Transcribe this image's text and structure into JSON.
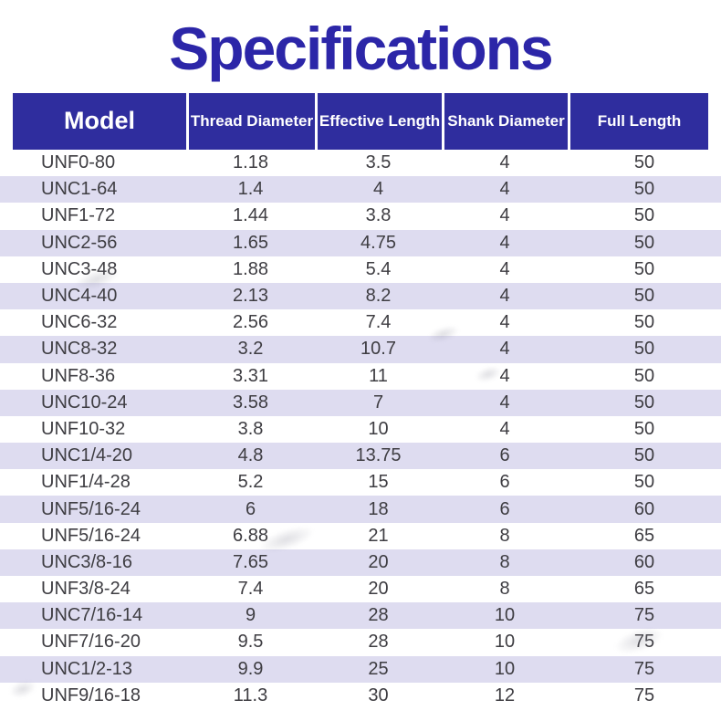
{
  "title": "Specifications",
  "colors": {
    "title_text": "#2c26a8",
    "header_bg": "#2f2d9e",
    "header_text": "#ffffff",
    "row_bg": "#ffffff",
    "row_alt_bg": "#dedcf0",
    "body_text": "#3e3d42"
  },
  "table": {
    "columns": [
      {
        "key": "model",
        "label": "Model"
      },
      {
        "key": "thread_diameter",
        "label": "Thread Diameter"
      },
      {
        "key": "effective_length",
        "label": "Effective Length"
      },
      {
        "key": "shank_diameter",
        "label": "Shank Diameter"
      },
      {
        "key": "full_length",
        "label": "Full Length"
      }
    ],
    "rows": [
      {
        "model": "UNF0-80",
        "thread_diameter": "1.18",
        "effective_length": "3.5",
        "shank_diameter": "4",
        "full_length": "50"
      },
      {
        "model": "UNC1-64",
        "thread_diameter": "1.4",
        "effective_length": "4",
        "shank_diameter": "4",
        "full_length": "50"
      },
      {
        "model": "UNF1-72",
        "thread_diameter": "1.44",
        "effective_length": "3.8",
        "shank_diameter": "4",
        "full_length": "50"
      },
      {
        "model": "UNC2-56",
        "thread_diameter": "1.65",
        "effective_length": "4.75",
        "shank_diameter": "4",
        "full_length": "50"
      },
      {
        "model": "UNC3-48",
        "thread_diameter": "1.88",
        "effective_length": "5.4",
        "shank_diameter": "4",
        "full_length": "50"
      },
      {
        "model": "UNC4-40",
        "thread_diameter": "2.13",
        "effective_length": "8.2",
        "shank_diameter": "4",
        "full_length": "50"
      },
      {
        "model": "UNC6-32",
        "thread_diameter": "2.56",
        "effective_length": "7.4",
        "shank_diameter": "4",
        "full_length": "50"
      },
      {
        "model": "UNC8-32",
        "thread_diameter": "3.2",
        "effective_length": "10.7",
        "shank_diameter": "4",
        "full_length": "50"
      },
      {
        "model": "UNF8-36",
        "thread_diameter": "3.31",
        "effective_length": "11",
        "shank_diameter": "4",
        "full_length": "50"
      },
      {
        "model": "UNC10-24",
        "thread_diameter": "3.58",
        "effective_length": "7",
        "shank_diameter": "4",
        "full_length": "50"
      },
      {
        "model": "UNF10-32",
        "thread_diameter": "3.8",
        "effective_length": "10",
        "shank_diameter": "4",
        "full_length": "50"
      },
      {
        "model": "UNC1/4-20",
        "thread_diameter": "4.8",
        "effective_length": "13.75",
        "shank_diameter": "6",
        "full_length": "50"
      },
      {
        "model": "UNF1/4-28",
        "thread_diameter": "5.2",
        "effective_length": "15",
        "shank_diameter": "6",
        "full_length": "50"
      },
      {
        "model": "UNF5/16-24",
        "thread_diameter": "6",
        "effective_length": "18",
        "shank_diameter": "6",
        "full_length": "60"
      },
      {
        "model": "UNF5/16-24",
        "thread_diameter": "6.88",
        "effective_length": "21",
        "shank_diameter": "8",
        "full_length": "65"
      },
      {
        "model": "UNC3/8-16",
        "thread_diameter": "7.65",
        "effective_length": "20",
        "shank_diameter": "8",
        "full_length": "60"
      },
      {
        "model": "UNF3/8-24",
        "thread_diameter": "7.4",
        "effective_length": "20",
        "shank_diameter": "8",
        "full_length": "65"
      },
      {
        "model": "UNC7/16-14",
        "thread_diameter": "9",
        "effective_length": "28",
        "shank_diameter": "10",
        "full_length": "75"
      },
      {
        "model": "UNF7/16-20",
        "thread_diameter": "9.5",
        "effective_length": "28",
        "shank_diameter": "10",
        "full_length": "75"
      },
      {
        "model": "UNC1/2-13",
        "thread_diameter": "9.9",
        "effective_length": "25",
        "shank_diameter": "10",
        "full_length": "75"
      },
      {
        "model": "UNF9/16-18",
        "thread_diameter": "11.3",
        "effective_length": "30",
        "shank_diameter": "12",
        "full_length": "75"
      }
    ]
  }
}
